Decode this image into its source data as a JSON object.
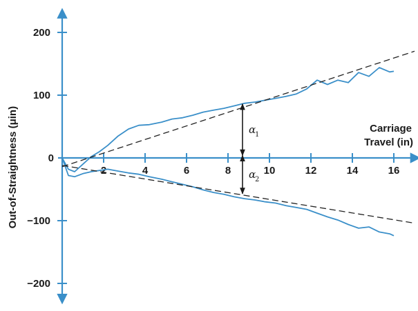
{
  "chart_data": {
    "type": "line",
    "title": "",
    "xlabel": [
      "Carriage",
      "Travel (in)"
    ],
    "ylabel": "Out-of-Straightness (μin)",
    "xlim": [
      0,
      17.2
    ],
    "ylim": [
      -230,
      240
    ],
    "x_ticks": [
      2,
      4,
      6,
      8,
      10,
      12,
      14,
      16
    ],
    "y_ticks": [
      200,
      100,
      0,
      -100,
      -200
    ],
    "y_tick_labels": [
      "200",
      "100",
      "0",
      "−100",
      "−200"
    ],
    "x_tick_labels": [
      "2",
      "4",
      "6",
      "8",
      "10",
      "12",
      "14",
      "16"
    ],
    "colors": {
      "measured": "#3a8fc9",
      "reference": "#222222",
      "axes": "#3a8fc9"
    },
    "series": [
      {
        "kind": "measured",
        "x": [
          0,
          0.3,
          0.6,
          1.0,
          1.4,
          1.8,
          2.2,
          2.7,
          3.2,
          3.7,
          4.2,
          4.8,
          5.3,
          5.8,
          6.3,
          6.8,
          7.3,
          7.8,
          8.3,
          8.8,
          9.3,
          9.8,
          10.3,
          10.8,
          11.3,
          11.8,
          12.3,
          12.8,
          13.3,
          13.8,
          14.3,
          14.8,
          15.3,
          15.8,
          16.0
        ],
        "y": [
          0,
          -18,
          -22,
          -10,
          2,
          10,
          20,
          35,
          46,
          52,
          53,
          57,
          62,
          64,
          68,
          73,
          76,
          79,
          83,
          87,
          89,
          92,
          95,
          98,
          102,
          110,
          124,
          117,
          124,
          120,
          136,
          130,
          144,
          137,
          138
        ]
      },
      {
        "kind": "measured",
        "x": [
          0,
          0.3,
          0.6,
          1.0,
          1.4,
          1.8,
          2.2,
          2.7,
          3.2,
          3.7,
          4.2,
          4.8,
          5.3,
          5.8,
          6.3,
          6.8,
          7.3,
          7.8,
          8.3,
          8.8,
          9.3,
          9.8,
          10.3,
          10.8,
          11.3,
          11.8,
          12.3,
          12.8,
          13.3,
          13.8,
          14.3,
          14.8,
          15.3,
          15.8,
          16.0
        ],
        "y": [
          0,
          -28,
          -30,
          -25,
          -22,
          -20,
          -18,
          -21,
          -24,
          -26,
          -30,
          -34,
          -38,
          -42,
          -46,
          -51,
          -55,
          -58,
          -62,
          -65,
          -67,
          -70,
          -72,
          -76,
          -79,
          -82,
          -88,
          -94,
          -99,
          -106,
          -112,
          -110,
          -118,
          -121,
          -124
        ]
      },
      {
        "kind": "reference",
        "dashed": true,
        "x": [
          0,
          17
        ],
        "y": [
          -14,
          170
        ]
      },
      {
        "kind": "reference",
        "dashed": true,
        "x": [
          0,
          17
        ],
        "y": [
          -12,
          -104
        ]
      }
    ],
    "annotations": [
      {
        "symbol": "α",
        "subscript": "1",
        "x": 8.7,
        "from_y": 4,
        "to_y": 86
      },
      {
        "symbol": "α",
        "subscript": "2",
        "x": 8.7,
        "from_y": 4,
        "to_y": -57
      }
    ]
  }
}
